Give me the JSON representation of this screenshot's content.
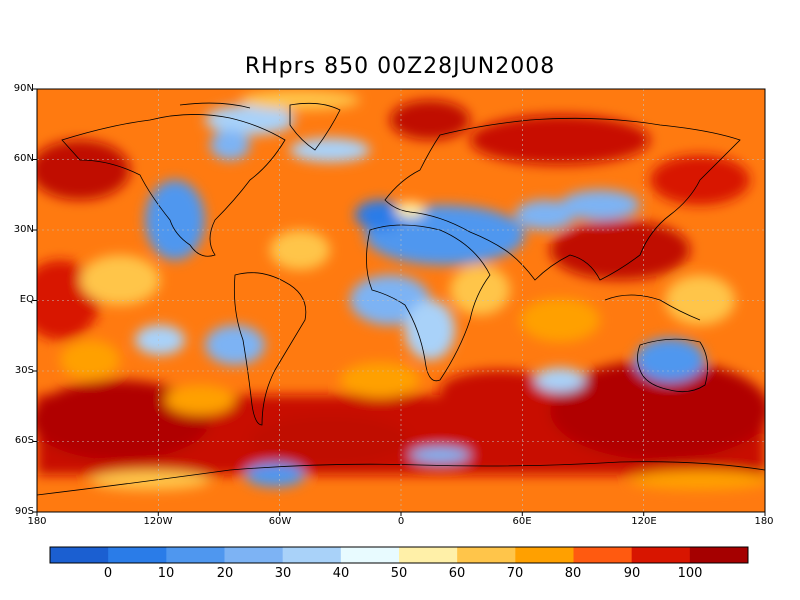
{
  "title": "RHprs 850  00Z28JUN2008",
  "lat_labels": [
    "90N",
    "60N",
    "30N",
    "EQ",
    "30S",
    "60S",
    "90S"
  ],
  "lon_labels": [
    "180",
    "120W",
    "60W",
    "0",
    "60E",
    "120E",
    "180"
  ],
  "colorbar": {
    "colors": [
      "#1b5fd1",
      "#2a7ce8",
      "#4f97ef",
      "#7db3f4",
      "#a9d2f9",
      "#e8fbff",
      "#fff0a8",
      "#ffc54a",
      "#ffa000",
      "#ff5a10",
      "#d81500",
      "#a50000"
    ],
    "labels": [
      "0",
      "10",
      "20",
      "30",
      "40",
      "50",
      "60",
      "70",
      "80",
      "90",
      "100"
    ]
  }
}
